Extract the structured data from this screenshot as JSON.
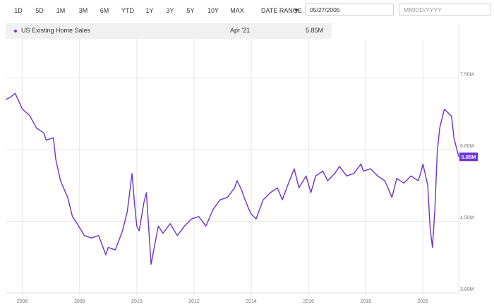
{
  "toolbar": {
    "ranges": [
      "1D",
      "5D",
      "1M",
      "3M",
      "6M",
      "YTD",
      "1Y",
      "3Y",
      "5Y",
      "10Y",
      "MAX"
    ],
    "date_range_label": "DATE RANGE",
    "start_date": "05/27/2005",
    "end_date_placeholder": "MM/DD/YYYY"
  },
  "legend": {
    "series_name": "US Existing Home Sales",
    "date": "Apr '21",
    "value": "5.85M"
  },
  "colors": {
    "series": "#6a33d4",
    "grid": "#e6e6e6",
    "legend_bg": "#f1f1f1"
  },
  "chart_data": {
    "type": "line",
    "title": "",
    "xlabel": "",
    "ylabel": "",
    "x_range": [
      "2005-06",
      "2021-04"
    ],
    "ylim": [
      3.0,
      8.5
    ],
    "y_ticks": [
      3.0,
      4.5,
      6.0,
      7.5
    ],
    "y_tick_labels": [
      "3.00M",
      "4.50M",
      "6.00M",
      "7.50M"
    ],
    "x_ticks": [
      "2006",
      "2008",
      "2010",
      "2012",
      "2014",
      "2016",
      "2018",
      "2020"
    ],
    "grid": true,
    "last_value_label": "5.85M",
    "series": [
      {
        "name": "US Existing Home Sales",
        "x": [
          "2005-06",
          "2005-08",
          "2005-10",
          "2006-01",
          "2006-04",
          "2006-07",
          "2006-10",
          "2006-11",
          "2007-02",
          "2007-03",
          "2007-05",
          "2007-08",
          "2007-10",
          "2007-12",
          "2008-03",
          "2008-06",
          "2008-09",
          "2008-12",
          "2009-01",
          "2009-04",
          "2009-07",
          "2009-09",
          "2009-11",
          "2009-12",
          "2010-01",
          "2010-02",
          "2010-04",
          "2010-05",
          "2010-07",
          "2010-10",
          "2010-12",
          "2011-03",
          "2011-06",
          "2011-09",
          "2011-12",
          "2012-03",
          "2012-06",
          "2012-09",
          "2012-12",
          "2013-03",
          "2013-06",
          "2013-07",
          "2013-09",
          "2013-10",
          "2013-12",
          "2014-01",
          "2014-03",
          "2014-06",
          "2014-09",
          "2014-12",
          "2015-02",
          "2015-05",
          "2015-07",
          "2015-09",
          "2015-12",
          "2016-02",
          "2016-04",
          "2016-07",
          "2016-09",
          "2016-12",
          "2017-02",
          "2017-05",
          "2017-08",
          "2017-11",
          "2017-12",
          "2018-03",
          "2018-06",
          "2018-09",
          "2018-12",
          "2019-02",
          "2019-05",
          "2019-08",
          "2019-11",
          "2019-12",
          "2020-01",
          "2020-03",
          "2020-04",
          "2020-05",
          "2020-06",
          "2020-07",
          "2020-08",
          "2020-10",
          "2020-12",
          "2021-01",
          "2021-02",
          "2021-04"
        ],
        "values": [
          7.05,
          7.1,
          7.18,
          6.85,
          6.72,
          6.45,
          6.35,
          6.2,
          6.25,
          5.8,
          5.35,
          5.0,
          4.6,
          4.45,
          4.2,
          4.15,
          4.2,
          3.8,
          3.95,
          3.9,
          4.3,
          4.7,
          5.5,
          4.9,
          4.4,
          4.3,
          4.9,
          5.1,
          3.6,
          4.4,
          4.25,
          4.45,
          4.2,
          4.4,
          4.55,
          4.6,
          4.4,
          4.75,
          4.95,
          5.0,
          5.2,
          5.35,
          5.15,
          5.0,
          4.75,
          4.65,
          4.55,
          4.95,
          5.1,
          5.2,
          4.95,
          5.35,
          5.6,
          5.2,
          5.45,
          5.1,
          5.45,
          5.55,
          5.35,
          5.5,
          5.65,
          5.45,
          5.5,
          5.7,
          5.55,
          5.6,
          5.45,
          5.35,
          5.0,
          5.4,
          5.3,
          5.45,
          5.35,
          5.5,
          5.7,
          5.25,
          4.35,
          3.95,
          4.75,
          5.95,
          6.45,
          6.85,
          6.75,
          6.7,
          6.25,
          5.85
        ]
      }
    ]
  }
}
